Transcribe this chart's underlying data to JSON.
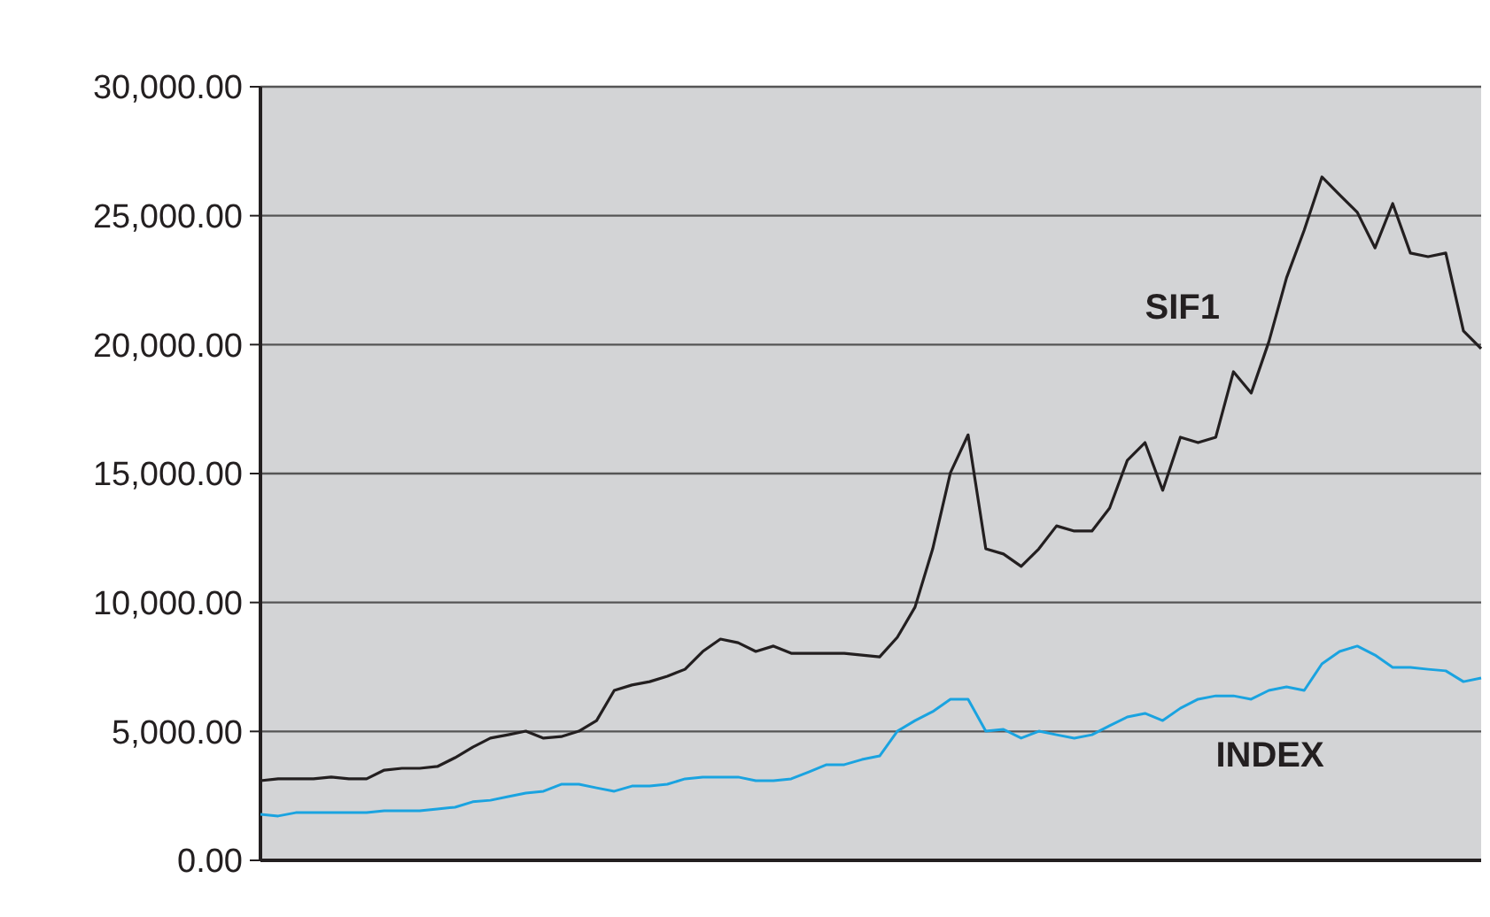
{
  "chart_data": {
    "type": "line",
    "categories": [
      null,
      null,
      null,
      null,
      null,
      null,
      null,
      null,
      null,
      null,
      null,
      null,
      null,
      null,
      null,
      null,
      null,
      null,
      null,
      null,
      null,
      null,
      null,
      null,
      null,
      null,
      null,
      null,
      null,
      null,
      null,
      null,
      null,
      null,
      null,
      null,
      null,
      null,
      null,
      null,
      null,
      null,
      null,
      null,
      null,
      null,
      null,
      null,
      null,
      null,
      null,
      null,
      null,
      null,
      null,
      null,
      null,
      null,
      null,
      null,
      null,
      null,
      null,
      null,
      null,
      null,
      null,
      null,
      null,
      null
    ],
    "series": [
      {
        "name": "SIF1",
        "color": "#231f20",
        "values": [
          3090,
          3160,
          3160,
          3160,
          3230,
          3160,
          3160,
          3500,
          3570,
          3570,
          3640,
          3980,
          4390,
          4740,
          4870,
          5010,
          4740,
          4800,
          5010,
          5420,
          6590,
          6800,
          6930,
          7140,
          7410,
          8100,
          8580,
          8440,
          8100,
          8310,
          8030,
          8030,
          8030,
          8030,
          7960,
          7890,
          8650,
          9820,
          12080,
          15030,
          16500,
          12080,
          11880,
          11400,
          12080,
          12970,
          12770,
          12770,
          13660,
          15510,
          16200,
          14350,
          16410,
          16200,
          16410,
          18950,
          18120,
          20110,
          22590,
          24440,
          26500,
          25810,
          25130,
          23750,
          25470,
          23550,
          23410,
          23550,
          20530,
          19840
        ]
      },
      {
        "name": "INDEX",
        "color": "#1aa3e0",
        "values": [
          1785,
          1720,
          1850,
          1850,
          1850,
          1850,
          1850,
          1920,
          1920,
          1920,
          1990,
          2060,
          2270,
          2330,
          2470,
          2610,
          2680,
          2950,
          2950,
          2810,
          2680,
          2880,
          2880,
          2950,
          3160,
          3230,
          3230,
          3230,
          3090,
          3090,
          3160,
          3430,
          3710,
          3710,
          3910,
          4050,
          5010,
          5420,
          5770,
          6250,
          6250,
          5010,
          5080,
          4740,
          5010,
          4870,
          4740,
          4870,
          5220,
          5560,
          5700,
          5420,
          5900,
          6250,
          6380,
          6380,
          6250,
          6590,
          6730,
          6590,
          7620,
          8100,
          8310,
          7960,
          7480,
          7480,
          7410,
          7350,
          6930,
          7070
        ]
      }
    ],
    "ylim": [
      0,
      30000
    ],
    "yticks": [
      {
        "value": 0,
        "label": "0.00"
      },
      {
        "value": 5000,
        "label": "5,000.00"
      },
      {
        "value": 10000,
        "label": "10,000.00"
      },
      {
        "value": 15000,
        "label": "15,000.00"
      },
      {
        "value": 20000,
        "label": "20,000.00"
      },
      {
        "value": 25000,
        "label": "25,000.00"
      },
      {
        "value": 30000,
        "label": "30,000.00"
      }
    ],
    "grid": "y",
    "marker": "none",
    "line_style": "solid"
  }
}
